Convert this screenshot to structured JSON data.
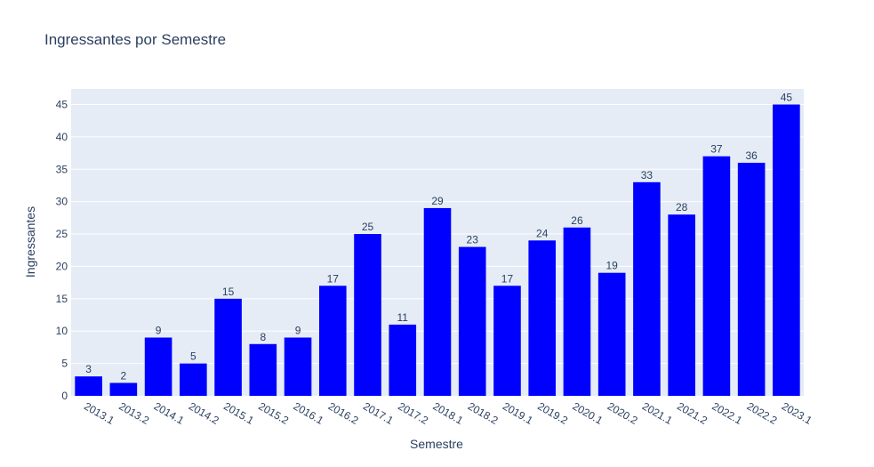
{
  "chart_data": {
    "type": "bar",
    "title": "Ingressantes por Semestre",
    "xlabel": "Semestre",
    "ylabel": "Ingressantes",
    "categories": [
      "2013.1",
      "2013.2",
      "2014.1",
      "2014.2",
      "2015.1",
      "2015.2",
      "2016.1",
      "2016.2",
      "2017.1",
      "2017.2",
      "2018.1",
      "2018.2",
      "2019.1",
      "2019.2",
      "2020.1",
      "2020.2",
      "2021.1",
      "2021.2",
      "2022.1",
      "2022.2",
      "2023.1"
    ],
    "values": [
      3,
      2,
      9,
      5,
      15,
      8,
      9,
      17,
      25,
      11,
      29,
      23,
      17,
      24,
      26,
      19,
      33,
      28,
      37,
      36,
      45
    ],
    "ylim": [
      0,
      47.4
    ],
    "yticks": [
      0,
      5,
      10,
      15,
      20,
      25,
      30,
      35,
      40,
      45
    ],
    "grid": true,
    "bar_color": "#0000ff",
    "plot_bg": "#e5ecf6"
  }
}
